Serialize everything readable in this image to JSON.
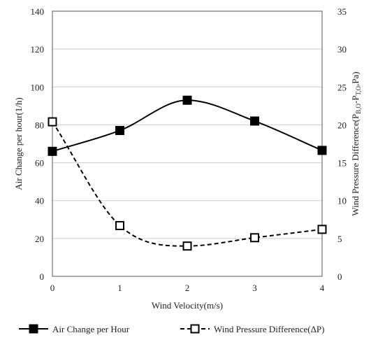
{
  "chart_data": {
    "type": "line",
    "x": [
      0,
      1,
      2,
      3,
      4
    ],
    "xlabel": "Wind Velocity(m/s)",
    "ylabel": "Air Change  per hour(1/h)",
    "y2label_parts": [
      "Wind Pressure Difference(P",
      "B,O",
      "-P",
      "T,O",
      ",Pa)"
    ],
    "xlim": [
      0,
      4
    ],
    "ylim": [
      0,
      140
    ],
    "y2lim": [
      0,
      35
    ],
    "xticks": [
      "0",
      "1",
      "2",
      "3",
      "4"
    ],
    "yticks": [
      "0",
      "20",
      "40",
      "60",
      "80",
      "100",
      "120",
      "140"
    ],
    "y2ticks": [
      "0",
      "5",
      "10",
      "15",
      "20",
      "25",
      "30",
      "35"
    ],
    "grid": "horizontal",
    "legend_position": "bottom",
    "series": [
      {
        "name": "Air Change per Hour",
        "axis": "left",
        "values": [
          66,
          77,
          93,
          82,
          66.5
        ],
        "line": "solid",
        "marker": "filled-square",
        "smooth": true,
        "color": "#000000"
      },
      {
        "name": "Wind Pressure Difference(ΔP)",
        "axis": "right",
        "values": [
          20.4,
          6.7,
          4.0,
          5.1,
          6.2
        ],
        "line": "dashed",
        "marker": "open-square",
        "smooth": true,
        "color": "#000000"
      }
    ]
  }
}
